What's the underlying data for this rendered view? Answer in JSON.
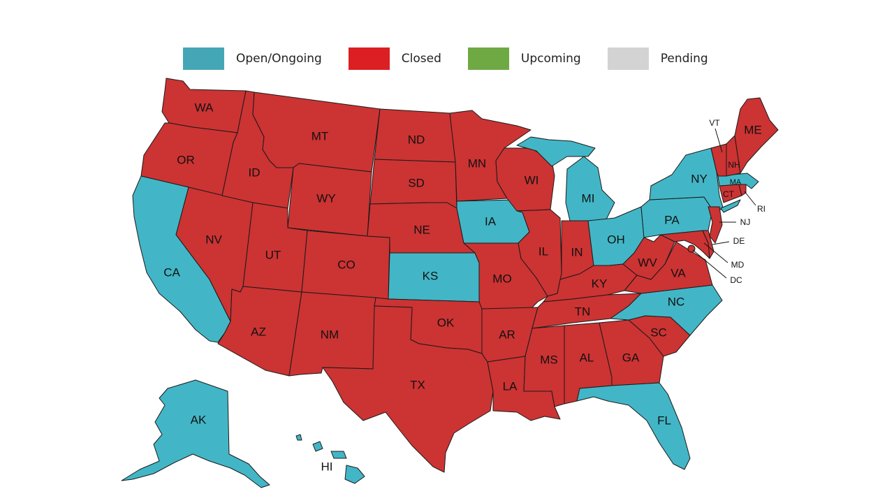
{
  "colors": {
    "open": "#42b6c6",
    "closed": "#cc3333",
    "upcoming": "#6fa943",
    "pending": "#d3d3d3",
    "legend_open": "#45a7b5",
    "legend_closed": "#dc1f22"
  },
  "legend": [
    {
      "key": "open",
      "label": "Open/Ongoing"
    },
    {
      "key": "closed",
      "label": "Closed"
    },
    {
      "key": "upcoming",
      "label": "Upcoming"
    },
    {
      "key": "pending",
      "label": "Pending"
    }
  ],
  "states": {
    "WA": {
      "label": "WA",
      "status": "closed"
    },
    "OR": {
      "label": "OR",
      "status": "closed"
    },
    "CA": {
      "label": "CA",
      "status": "open"
    },
    "NV": {
      "label": "NV",
      "status": "closed"
    },
    "ID": {
      "label": "ID",
      "status": "closed"
    },
    "MT": {
      "label": "MT",
      "status": "closed"
    },
    "WY": {
      "label": "WY",
      "status": "closed"
    },
    "UT": {
      "label": "UT",
      "status": "closed"
    },
    "AZ": {
      "label": "AZ",
      "status": "closed"
    },
    "CO": {
      "label": "CO",
      "status": "closed"
    },
    "NM": {
      "label": "NM",
      "status": "closed"
    },
    "ND": {
      "label": "ND",
      "status": "closed"
    },
    "SD": {
      "label": "SD",
      "status": "closed"
    },
    "NE": {
      "label": "NE",
      "status": "closed"
    },
    "KS": {
      "label": "KS",
      "status": "open"
    },
    "OK": {
      "label": "OK",
      "status": "closed"
    },
    "TX": {
      "label": "TX",
      "status": "closed"
    },
    "MN": {
      "label": "MN",
      "status": "closed"
    },
    "IA": {
      "label": "IA",
      "status": "open"
    },
    "MO": {
      "label": "MO",
      "status": "closed"
    },
    "AR": {
      "label": "AR",
      "status": "closed"
    },
    "LA": {
      "label": "LA",
      "status": "closed"
    },
    "WI": {
      "label": "WI",
      "status": "closed"
    },
    "IL": {
      "label": "IL",
      "status": "closed"
    },
    "MI": {
      "label": "MI",
      "status": "open"
    },
    "IN": {
      "label": "IN",
      "status": "closed"
    },
    "OH": {
      "label": "OH",
      "status": "open"
    },
    "KY": {
      "label": "KY",
      "status": "closed"
    },
    "TN": {
      "label": "TN",
      "status": "closed"
    },
    "MS": {
      "label": "MS",
      "status": "closed"
    },
    "AL": {
      "label": "AL",
      "status": "closed"
    },
    "GA": {
      "label": "GA",
      "status": "closed"
    },
    "FL": {
      "label": "FL",
      "status": "open"
    },
    "SC": {
      "label": "SC",
      "status": "closed"
    },
    "NC": {
      "label": "NC",
      "status": "open"
    },
    "VA": {
      "label": "VA",
      "status": "closed"
    },
    "WV": {
      "label": "WV",
      "status": "closed"
    },
    "PA": {
      "label": "PA",
      "status": "open"
    },
    "NY": {
      "label": "NY",
      "status": "open"
    },
    "VT": {
      "label": "VT",
      "status": "closed"
    },
    "NH": {
      "label": "NH",
      "status": "closed"
    },
    "ME": {
      "label": "ME",
      "status": "closed"
    },
    "MA": {
      "label": "MA",
      "status": "open"
    },
    "RI": {
      "label": "RI",
      "status": "closed"
    },
    "CT": {
      "label": "CT",
      "status": "closed"
    },
    "NJ": {
      "label": "NJ",
      "status": "closed"
    },
    "DE": {
      "label": "DE",
      "status": "closed"
    },
    "MD": {
      "label": "MD",
      "status": "closed"
    },
    "DC": {
      "label": "DC",
      "status": "closed"
    },
    "AK": {
      "label": "AK",
      "status": "open"
    },
    "HI": {
      "label": "HI",
      "status": "open"
    }
  }
}
